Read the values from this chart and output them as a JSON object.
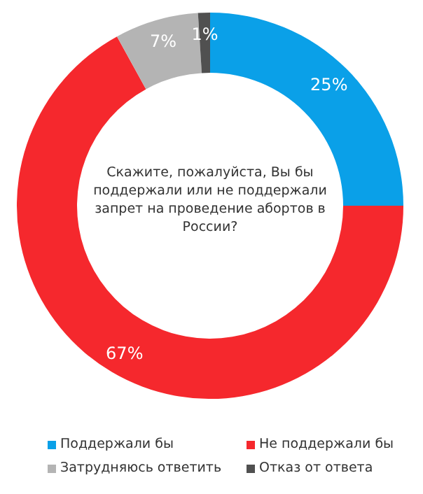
{
  "chart_data": {
    "type": "donut",
    "title": "Скажите, пожалуйста, Вы бы поддержали или не поддержали запрет на проведение абортов в России?",
    "categories": [
      "Поддержали бы",
      "Не поддержали бы",
      "Затрудняюсь ответить",
      "Отказ от ответа"
    ],
    "values": [
      25,
      67,
      7,
      1
    ],
    "colors": [
      "#0aa0e8",
      "#f5282d",
      "#b4b4b4",
      "#505050"
    ],
    "value_labels": [
      "25%",
      "67%",
      "7%",
      "1%"
    ],
    "legend": "bottom"
  }
}
